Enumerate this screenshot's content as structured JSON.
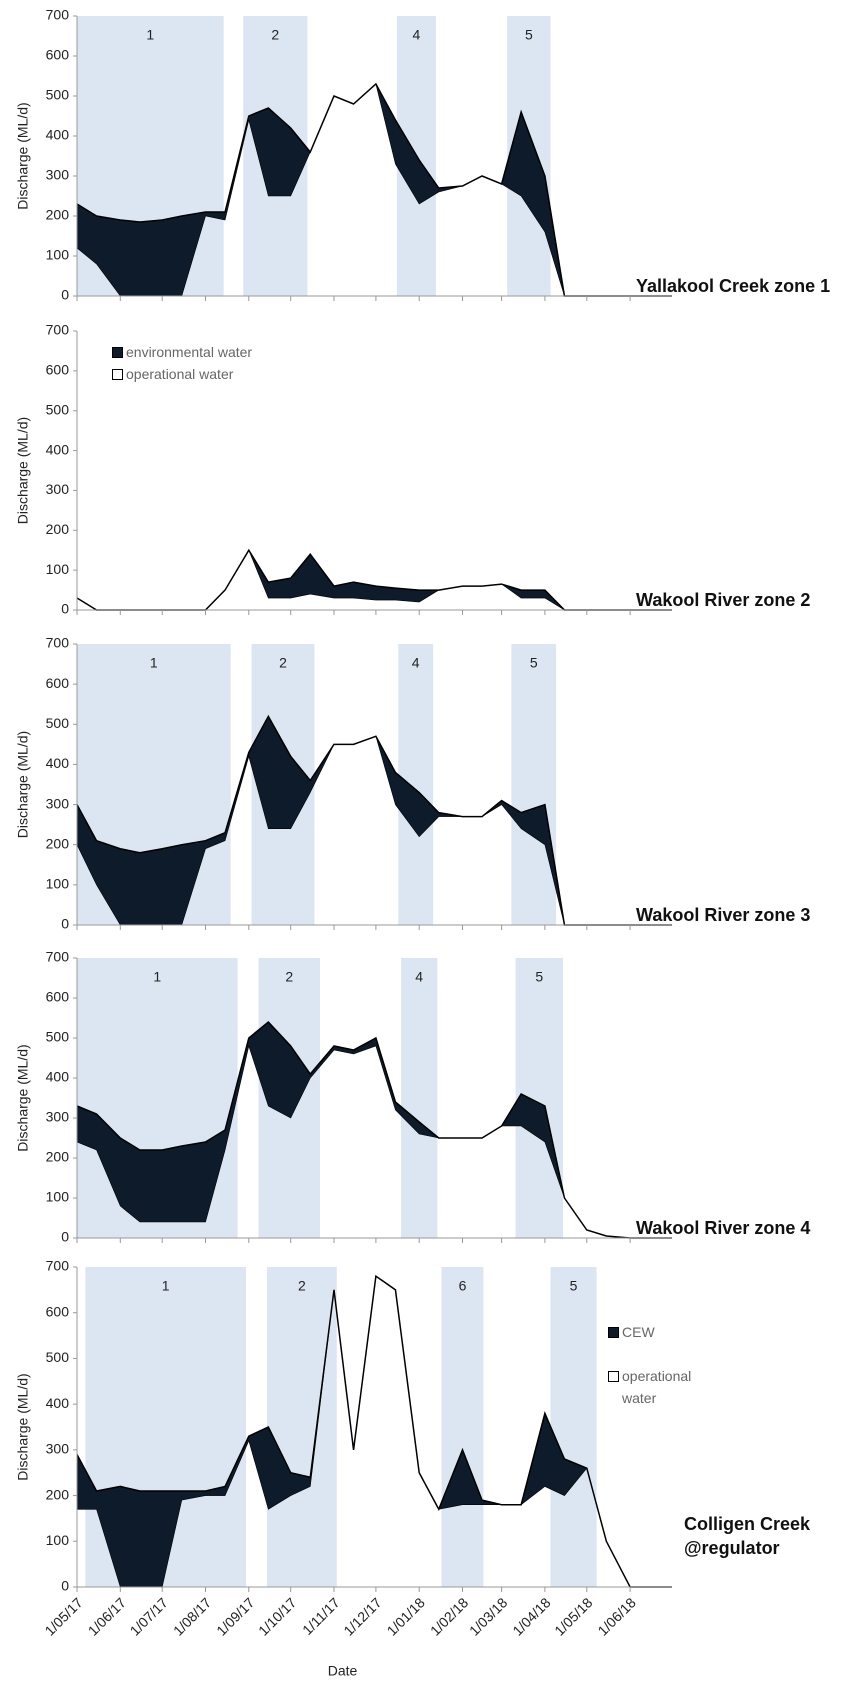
{
  "chart_data": [
    {
      "type": "area",
      "title": [
        "Yallakool Creek zone 1"
      ],
      "ylabel": "Discharge (ML/d)",
      "x": [
        "1/05/17",
        "15/05/17",
        "1/06/17",
        "15/06/17",
        "1/07/17",
        "15/07/17",
        "1/08/17",
        "15/08/17",
        "1/09/17",
        "15/09/17",
        "1/10/17",
        "15/10/17",
        "1/11/17",
        "15/11/17",
        "1/12/17",
        "15/12/17",
        "1/01/18",
        "15/01/18",
        "1/02/18",
        "15/02/18",
        "1/03/18",
        "15/03/18",
        "1/04/18",
        "15/04/18",
        "1/05/18",
        "15/05/18",
        "1/06/18",
        "15/06/18",
        "1/07/18"
      ],
      "series": [
        {
          "color": "#0d1b2a",
          "values": [
            230,
            200,
            190,
            185,
            190,
            200,
            210,
            210,
            450,
            470,
            420,
            360,
            500,
            480,
            530,
            440,
            340,
            270,
            275,
            300,
            280,
            460,
            300,
            0,
            0,
            0,
            0,
            0,
            0
          ]
        },
        {
          "color": "#ffffff",
          "values": [
            120,
            80,
            0,
            0,
            0,
            0,
            200,
            190,
            440,
            250,
            250,
            360,
            500,
            480,
            530,
            330,
            230,
            260,
            275,
            300,
            280,
            250,
            160,
            0,
            0,
            0,
            0,
            0,
            0
          ]
        }
      ],
      "zones": [
        {
          "start": "1/05/17",
          "end": "14/08/17",
          "label": "1"
        },
        {
          "start": "28/08/17",
          "end": "13/10/17",
          "label": "2"
        },
        {
          "start": "16/12/17",
          "end": "13/01/18",
          "label": "4"
        },
        {
          "start": "5/03/18",
          "end": "5/04/18",
          "label": "5"
        }
      ],
      "xlim": [
        "1/05/17",
        "1/07/18"
      ],
      "ylim": [
        0,
        700
      ],
      "yticks": [
        0,
        100,
        200,
        300,
        400,
        500,
        600,
        700
      ]
    },
    {
      "type": "area",
      "title": [
        "Wakool River zone 2"
      ],
      "ylabel": "Discharge (ML/d)",
      "legend": "upper left",
      "x": [
        "1/05/17",
        "15/05/17",
        "1/06/17",
        "15/06/17",
        "1/07/17",
        "15/07/17",
        "1/08/17",
        "15/08/17",
        "1/09/17",
        "15/09/17",
        "1/10/17",
        "15/10/17",
        "1/11/17",
        "15/11/17",
        "1/12/17",
        "15/12/17",
        "1/01/18",
        "15/01/18",
        "1/02/18",
        "15/02/18",
        "1/03/18",
        "15/03/18",
        "1/04/18",
        "15/04/18",
        "1/05/18",
        "15/05/18",
        "1/06/18",
        "15/06/18",
        "1/07/18"
      ],
      "series": [
        {
          "name": "environmental water",
          "color": "#0d1b2a",
          "values": [
            30,
            0,
            0,
            0,
            0,
            0,
            0,
            50,
            150,
            70,
            80,
            140,
            60,
            70,
            60,
            55,
            50,
            50,
            60,
            60,
            65,
            50,
            50,
            0,
            0,
            0,
            0,
            0,
            0
          ]
        },
        {
          "name": "operational water",
          "color": "#ffffff",
          "values": [
            30,
            0,
            0,
            0,
            0,
            0,
            0,
            50,
            150,
            30,
            30,
            40,
            30,
            30,
            25,
            25,
            20,
            50,
            60,
            60,
            65,
            30,
            30,
            0,
            0,
            0,
            0,
            0,
            0
          ]
        }
      ],
      "zones": [],
      "xlim": [
        "1/05/17",
        "1/07/18"
      ],
      "ylim": [
        0,
        700
      ],
      "yticks": [
        0,
        100,
        200,
        300,
        400,
        500,
        600,
        700
      ]
    },
    {
      "type": "area",
      "title": [
        "Wakool River zone 3"
      ],
      "ylabel": "Discharge (ML/d)",
      "x": [
        "1/05/17",
        "15/05/17",
        "1/06/17",
        "15/06/17",
        "1/07/17",
        "15/07/17",
        "1/08/17",
        "15/08/17",
        "1/09/17",
        "15/09/17",
        "1/10/17",
        "15/10/17",
        "1/11/17",
        "15/11/17",
        "1/12/17",
        "15/12/17",
        "1/01/18",
        "15/01/18",
        "1/02/18",
        "15/02/18",
        "1/03/18",
        "15/03/18",
        "1/04/18",
        "15/04/18",
        "1/05/18",
        "15/05/18",
        "1/06/18",
        "15/06/18",
        "1/07/18"
      ],
      "series": [
        {
          "color": "#0d1b2a",
          "values": [
            300,
            210,
            190,
            180,
            190,
            200,
            210,
            230,
            430,
            520,
            420,
            360,
            450,
            450,
            470,
            380,
            330,
            280,
            270,
            270,
            310,
            280,
            300,
            0,
            0,
            0,
            0,
            0,
            0
          ]
        },
        {
          "color": "#ffffff",
          "values": [
            200,
            100,
            0,
            0,
            0,
            0,
            190,
            210,
            420,
            240,
            240,
            330,
            450,
            450,
            470,
            300,
            220,
            270,
            270,
            270,
            300,
            240,
            200,
            0,
            0,
            0,
            0,
            0,
            0
          ]
        }
      ],
      "zones": [
        {
          "start": "1/05/17",
          "end": "19/08/17",
          "label": "1"
        },
        {
          "start": "3/09/17",
          "end": "18/10/17",
          "label": "2"
        },
        {
          "start": "17/12/17",
          "end": "11/01/18",
          "label": "4"
        },
        {
          "start": "8/03/18",
          "end": "9/04/18",
          "label": "5"
        }
      ],
      "xlim": [
        "1/05/17",
        "1/07/18"
      ],
      "ylim": [
        0,
        700
      ],
      "yticks": [
        0,
        100,
        200,
        300,
        400,
        500,
        600,
        700
      ]
    },
    {
      "type": "area",
      "title": [
        "Wakool River zone 4"
      ],
      "ylabel": "Discharge (ML/d)",
      "x": [
        "1/05/17",
        "15/05/17",
        "1/06/17",
        "15/06/17",
        "1/07/17",
        "15/07/17",
        "1/08/17",
        "15/08/17",
        "1/09/17",
        "15/09/17",
        "1/10/17",
        "15/10/17",
        "1/11/17",
        "15/11/17",
        "1/12/17",
        "15/12/17",
        "1/01/18",
        "15/01/18",
        "1/02/18",
        "15/02/18",
        "1/03/18",
        "15/03/18",
        "1/04/18",
        "15/04/18",
        "1/05/18",
        "15/05/18",
        "1/06/18",
        "15/06/18",
        "1/07/18"
      ],
      "series": [
        {
          "color": "#0d1b2a",
          "values": [
            330,
            310,
            250,
            220,
            220,
            230,
            240,
            270,
            500,
            540,
            480,
            410,
            480,
            470,
            500,
            340,
            290,
            250,
            250,
            250,
            280,
            360,
            330,
            100,
            20,
            5,
            0,
            0,
            0
          ]
        },
        {
          "color": "#ffffff",
          "values": [
            240,
            220,
            80,
            40,
            40,
            40,
            40,
            220,
            480,
            330,
            300,
            400,
            470,
            460,
            480,
            320,
            260,
            250,
            250,
            250,
            280,
            280,
            240,
            100,
            20,
            5,
            0,
            0,
            0
          ]
        }
      ],
      "zones": [
        {
          "start": "1/05/17",
          "end": "24/08/17",
          "label": "1"
        },
        {
          "start": "8/09/17",
          "end": "22/10/17",
          "label": "2"
        },
        {
          "start": "19/12/17",
          "end": "14/01/18",
          "label": "4"
        },
        {
          "start": "11/03/18",
          "end": "14/04/18",
          "label": "5"
        }
      ],
      "xlim": [
        "1/05/17",
        "1/07/18"
      ],
      "ylim": [
        0,
        700
      ],
      "yticks": [
        0,
        100,
        200,
        300,
        400,
        500,
        600,
        700
      ]
    },
    {
      "type": "area",
      "title": [
        "Colligen Creek",
        "@regulator"
      ],
      "ylabel": "Discharge (ML/d)",
      "xlabel": "Date",
      "legend": "right",
      "x": [
        "1/05/17",
        "15/05/17",
        "1/06/17",
        "15/06/17",
        "1/07/17",
        "15/07/17",
        "1/08/17",
        "15/08/17",
        "1/09/17",
        "15/09/17",
        "1/10/17",
        "15/10/17",
        "1/11/17",
        "15/11/17",
        "1/12/17",
        "15/12/17",
        "1/01/18",
        "15/01/18",
        "1/02/18",
        "15/02/18",
        "1/03/18",
        "15/03/18",
        "1/04/18",
        "15/04/18",
        "1/05/18",
        "15/05/18",
        "1/06/18",
        "15/06/18",
        "1/07/18"
      ],
      "series": [
        {
          "name": "CEW",
          "color": "#0d1b2a",
          "values": [
            290,
            210,
            220,
            210,
            210,
            210,
            210,
            220,
            330,
            350,
            250,
            240,
            650,
            300,
            680,
            650,
            250,
            170,
            300,
            190,
            180,
            180,
            380,
            280,
            260,
            100,
            0,
            0,
            0
          ]
        },
        {
          "name": "operational water",
          "color": "#ffffff",
          "values": [
            170,
            170,
            0,
            0,
            0,
            190,
            200,
            200,
            320,
            170,
            200,
            220,
            650,
            300,
            680,
            650,
            250,
            170,
            180,
            180,
            180,
            180,
            220,
            200,
            260,
            100,
            0,
            0,
            0
          ]
        }
      ],
      "zones": [
        {
          "start": "7/05/17",
          "end": "30/08/17",
          "label": "1"
        },
        {
          "start": "14/09/17",
          "end": "3/11/17",
          "label": "2"
        },
        {
          "start": "17/01/18",
          "end": "16/02/18",
          "label": "6"
        },
        {
          "start": "5/04/18",
          "end": "8/05/18",
          "label": "5"
        }
      ],
      "xlim": [
        "1/05/17",
        "1/07/18"
      ],
      "ylim": [
        0,
        700
      ],
      "yticks": [
        0,
        100,
        200,
        300,
        400,
        500,
        600,
        700
      ],
      "xticks": [
        "1/05/17",
        "1/06/17",
        "1/07/17",
        "1/08/17",
        "1/09/17",
        "1/10/17",
        "1/11/17",
        "1/12/17",
        "1/01/18",
        "1/02/18",
        "1/03/18",
        "1/04/18",
        "1/05/18",
        "1/06/18"
      ]
    }
  ]
}
